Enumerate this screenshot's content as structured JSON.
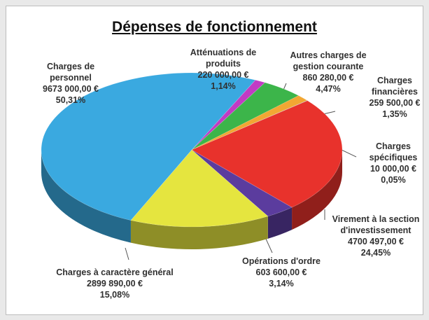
{
  "chart_data": {
    "type": "pie3d",
    "title": "Dépenses de fonctionnement",
    "categories": [
      "Atténuations de produits",
      "Autres charges de gestion courante",
      "Charges financières",
      "Charges spécifiques",
      "Virement à la section d'investissement",
      "Opérations d'ordre",
      "Charges à caractère général",
      "Charges de personnel"
    ],
    "values": [
      220000,
      860280,
      259500,
      10000,
      4700497,
      603600,
      2899890,
      9673000
    ],
    "value_labels": [
      "220 000,00 €",
      "860 280,00 €",
      "259 500,00 €",
      "10 000,00 €",
      "4700 497,00 €",
      "603 600,00 €",
      "2899 890,00 €",
      "9673 000,00 €"
    ],
    "percent_labels": [
      "1,14%",
      "4,47%",
      "1,35%",
      "0,05%",
      "24,45%",
      "3,14%",
      "15,08%",
      "50,31%"
    ],
    "colors": [
      "#c23bc4",
      "#3cb54a",
      "#f2a733",
      "#9aa0a6",
      "#e8322c",
      "#5b3c9e",
      "#e5e53f",
      "#3aa9e0"
    ]
  }
}
